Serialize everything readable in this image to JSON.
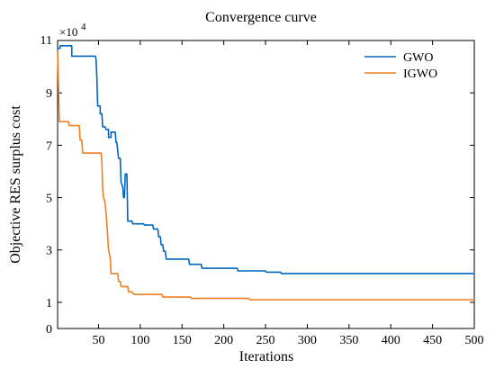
{
  "chart_data": {
    "type": "line",
    "title": "Convergence curve",
    "xlabel": "Iterations",
    "ylabel": "Objective RES surplus cost",
    "scale_label": {
      "base": "×10",
      "exp": "4"
    },
    "xlim": [
      1,
      500
    ],
    "ylim": [
      0,
      11
    ],
    "xticks": [
      50,
      100,
      150,
      200,
      250,
      300,
      350,
      400,
      450,
      500
    ],
    "yticks": [
      0,
      1,
      3,
      5,
      7,
      9,
      11
    ],
    "legend": "top-right",
    "series": [
      {
        "name": "GWO",
        "color": "#0066bb",
        "points": [
          [
            1,
            10.7
          ],
          [
            4,
            10.7
          ],
          [
            4,
            10.8
          ],
          [
            18,
            10.8
          ],
          [
            18,
            10.4
          ],
          [
            46,
            10.4
          ],
          [
            47,
            10.3
          ],
          [
            48,
            9.6
          ],
          [
            49,
            8.5
          ],
          [
            52,
            8.5
          ],
          [
            52,
            8.2
          ],
          [
            54,
            8.2
          ],
          [
            55,
            7.7
          ],
          [
            58,
            7.7
          ],
          [
            59,
            7.6
          ],
          [
            62,
            7.6
          ],
          [
            62,
            7.3
          ],
          [
            65,
            7.3
          ],
          [
            65,
            7.5
          ],
          [
            70,
            7.5
          ],
          [
            71,
            7.1
          ],
          [
            72,
            7.1
          ],
          [
            74,
            6.5
          ],
          [
            76,
            6.5
          ],
          [
            77,
            5.6
          ],
          [
            79,
            5.4
          ],
          [
            80,
            5.0
          ],
          [
            81,
            5.0
          ],
          [
            82,
            5.9
          ],
          [
            84,
            5.9
          ],
          [
            85,
            4.1
          ],
          [
            90,
            4.1
          ],
          [
            91,
            4.0
          ],
          [
            104,
            4.0
          ],
          [
            105,
            3.95
          ],
          [
            115,
            3.95
          ],
          [
            116,
            3.8
          ],
          [
            121,
            3.8
          ],
          [
            122,
            3.5
          ],
          [
            124,
            3.5
          ],
          [
            125,
            3.2
          ],
          [
            127,
            3.2
          ],
          [
            128,
            2.95
          ],
          [
            130,
            2.95
          ],
          [
            131,
            2.65
          ],
          [
            158,
            2.65
          ],
          [
            159,
            2.45
          ],
          [
            173,
            2.45
          ],
          [
            174,
            2.3
          ],
          [
            216,
            2.3
          ],
          [
            217,
            2.2
          ],
          [
            250,
            2.2
          ],
          [
            251,
            2.15
          ],
          [
            268,
            2.15
          ],
          [
            269,
            2.1
          ],
          [
            500,
            2.1
          ]
        ]
      },
      {
        "name": "IGWO",
        "color": "#ee7f22",
        "points": [
          [
            1,
            10.6
          ],
          [
            2,
            9.4
          ],
          [
            3,
            7.9
          ],
          [
            14,
            7.9
          ],
          [
            15,
            7.75
          ],
          [
            27,
            7.75
          ],
          [
            28,
            7.2
          ],
          [
            30,
            7.2
          ],
          [
            31,
            6.7
          ],
          [
            53,
            6.7
          ],
          [
            54,
            6.4
          ],
          [
            55,
            5.3
          ],
          [
            56,
            5.0
          ],
          [
            58,
            4.8
          ],
          [
            60,
            4.0
          ],
          [
            62,
            3.0
          ],
          [
            64,
            2.7
          ],
          [
            65,
            2.1
          ],
          [
            73,
            2.1
          ],
          [
            74,
            1.8
          ],
          [
            76,
            1.8
          ],
          [
            77,
            1.6
          ],
          [
            85,
            1.6
          ],
          [
            86,
            1.4
          ],
          [
            90,
            1.4
          ],
          [
            91,
            1.35
          ],
          [
            93,
            1.3
          ],
          [
            126,
            1.3
          ],
          [
            127,
            1.2
          ],
          [
            160,
            1.2
          ],
          [
            161,
            1.15
          ],
          [
            230,
            1.15
          ],
          [
            231,
            1.1
          ],
          [
            500,
            1.1
          ]
        ]
      }
    ]
  }
}
